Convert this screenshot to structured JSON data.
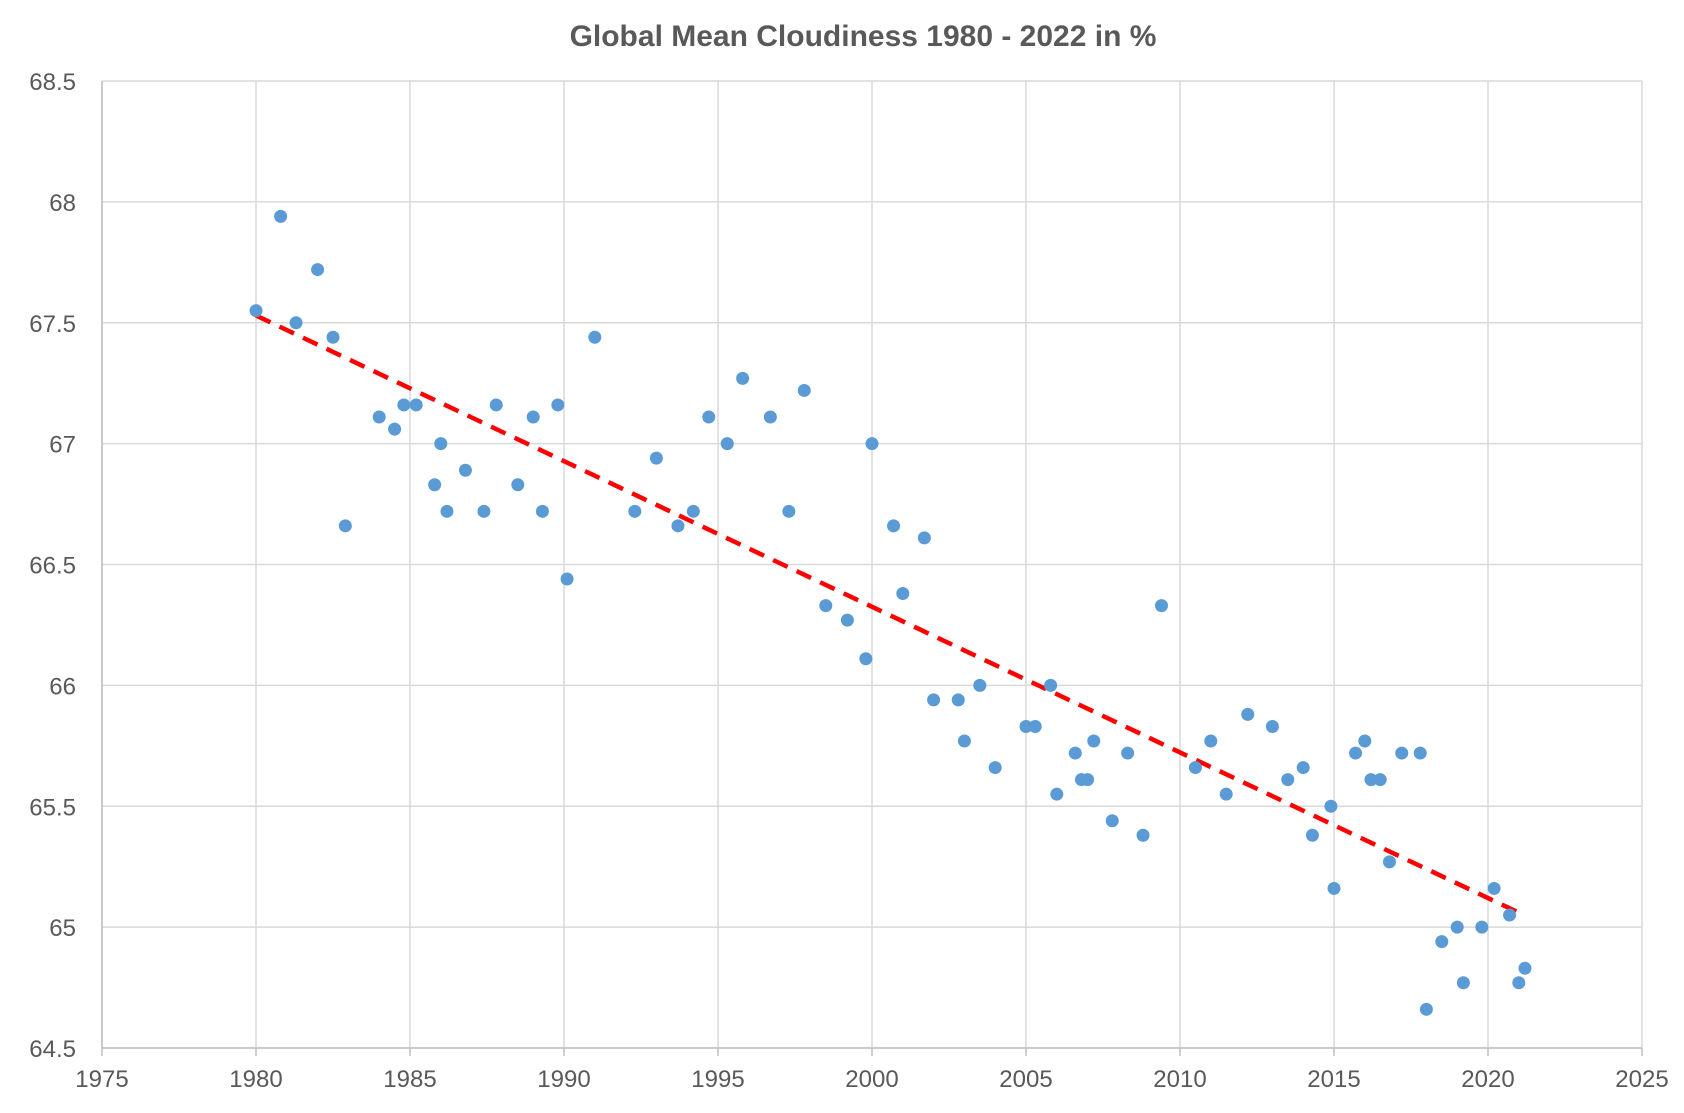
{
  "chart_data": {
    "type": "scatter",
    "title": "Global Mean Cloudiness 1980 - 2022 in %",
    "xlabel": "",
    "ylabel": "",
    "xlim": [
      1975,
      2025
    ],
    "ylim": [
      64.5,
      68.5
    ],
    "x_ticks": [
      "1975",
      "1980",
      "1985",
      "1990",
      "1995",
      "2000",
      "2005",
      "2010",
      "2015",
      "2020",
      "2025"
    ],
    "y_ticks": [
      "64.5",
      "65",
      "65.5",
      "66",
      "66.5",
      "67",
      "67.5",
      "68",
      "68.5"
    ],
    "grid": true,
    "legend": "none",
    "colors": {
      "points": "#5b9bd5",
      "trendline": "#ff0000",
      "grid": "#d9d9d9",
      "axis": "#bfbfbf",
      "text": "#595959"
    },
    "series": [
      {
        "x": [
          1980.0,
          1980.8,
          1981.3,
          1982.0,
          1982.5,
          1982.9,
          1984.0,
          1984.5,
          1984.8,
          1985.2,
          1985.8,
          1986.0,
          1986.2,
          1986.8,
          1987.4,
          1987.8,
          1988.5,
          1989.0,
          1989.3,
          1989.8,
          1990.1,
          1991.0,
          1992.3,
          1993.0,
          1993.7,
          1994.2,
          1994.7,
          1995.3,
          1995.8,
          1996.7,
          1997.3,
          1997.8,
          1998.5,
          1999.2,
          1999.8,
          2000.0,
          2000.7,
          2001.0,
          2001.7,
          2002.0,
          2002.8,
          2003.0,
          2003.5,
          2004.0,
          2005.0,
          2005.3,
          2005.8,
          2006.0,
          2006.6,
          2006.8,
          2007.0,
          2007.2,
          2007.8,
          2008.3,
          2008.8,
          2009.4,
          2010.5,
          2011.0,
          2011.5,
          2012.2,
          2013.0,
          2013.5,
          2014.0,
          2014.3,
          2014.9,
          2015.0,
          2015.7,
          2016.0,
          2016.2,
          2016.5,
          2016.8,
          2017.2,
          2017.8,
          2018.0,
          2018.5,
          2019.0,
          2019.2,
          2019.8,
          2020.2,
          2020.7,
          2021.0,
          2021.2
        ],
        "values": [
          67.55,
          67.94,
          67.5,
          67.72,
          67.44,
          66.66,
          67.11,
          67.06,
          67.16,
          67.16,
          66.83,
          67.0,
          66.72,
          66.89,
          66.72,
          67.16,
          66.83,
          67.11,
          66.72,
          67.16,
          66.44,
          67.44,
          66.72,
          66.94,
          66.66,
          66.72,
          67.11,
          67.0,
          67.27,
          67.11,
          66.72,
          67.22,
          66.33,
          66.27,
          66.11,
          67.0,
          66.66,
          66.38,
          66.61,
          65.94,
          65.94,
          65.77,
          66.0,
          65.66,
          65.83,
          65.83,
          66.0,
          65.55,
          65.72,
          65.61,
          65.61,
          65.77,
          65.44,
          65.72,
          65.38,
          66.33,
          65.66,
          65.77,
          65.55,
          65.88,
          65.83,
          65.61,
          65.66,
          65.38,
          65.5,
          65.16,
          65.72,
          65.77,
          65.61,
          65.61,
          65.27,
          65.72,
          65.72,
          64.66,
          64.94,
          65.0,
          64.77,
          65.0,
          65.16,
          65.05,
          64.77,
          64.83
        ]
      }
    ],
    "trendline": {
      "style": "dashed",
      "start": [
        1980,
        67.53
      ],
      "end": [
        2021,
        65.06
      ]
    }
  }
}
